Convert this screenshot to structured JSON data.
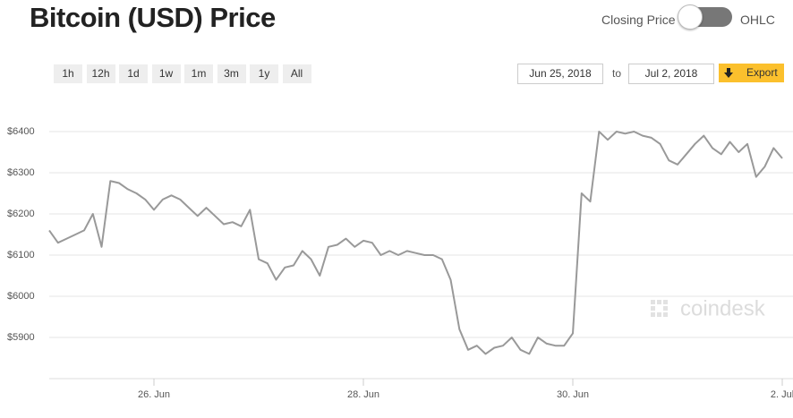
{
  "chart_data": {
    "type": "line",
    "title": "Bitcoin (USD) Price",
    "categories": [
      null,
      null,
      null,
      null,
      null,
      null,
      null,
      null,
      null,
      null,
      null,
      null,
      "26. Jun",
      null,
      null,
      null,
      null,
      null,
      null,
      null,
      null,
      null,
      null,
      null,
      null,
      null,
      null,
      null,
      null,
      null,
      null,
      null,
      null,
      null,
      null,
      null,
      "28. Jun",
      null,
      null,
      null,
      null,
      null,
      null,
      null,
      null,
      null,
      null,
      null,
      null,
      null,
      null,
      null,
      null,
      null,
      null,
      null,
      null,
      null,
      null,
      null,
      "30. Jun",
      null,
      null,
      null,
      null,
      null,
      null,
      null,
      null,
      null,
      null,
      null,
      null,
      null,
      null,
      null,
      null,
      null,
      null,
      null,
      null,
      null,
      null,
      null,
      "2. Jul"
    ],
    "series": [
      {
        "name": "Closing Price",
        "color": "#999999",
        "values": [
          6160,
          6130,
          6140,
          6150,
          6160,
          6200,
          6120,
          6280,
          6275,
          6260,
          6250,
          6235,
          6210,
          6235,
          6245,
          6235,
          6215,
          6195,
          6215,
          6195,
          6175,
          6180,
          6170,
          6210,
          6090,
          6080,
          6040,
          6070,
          6075,
          6110,
          6090,
          6050,
          6120,
          6125,
          6140,
          6120,
          6135,
          6130,
          6100,
          6110,
          6100,
          6110,
          6105,
          6100,
          6100,
          6090,
          6040,
          5920,
          5870,
          5880,
          5860,
          5875,
          5880,
          5900,
          5870,
          5860,
          5900,
          5885,
          5880,
          5880,
          5910,
          6250,
          6230,
          6400,
          6380,
          6400,
          6395,
          6400,
          6390,
          6385,
          6370,
          6330,
          6320,
          6345,
          6370,
          6390,
          6360,
          6345,
          6375,
          6350,
          6370,
          6290,
          6315,
          6360,
          6335
        ]
      }
    ],
    "ylim": [
      5800,
      6500
    ],
    "yticks": [
      {
        "value": 5900,
        "label": "$5900"
      },
      {
        "value": 6000,
        "label": "$6000"
      },
      {
        "value": 6100,
        "label": "$6100"
      },
      {
        "value": 6200,
        "label": "$6200"
      },
      {
        "value": 6300,
        "label": "$6300"
      },
      {
        "value": 6400,
        "label": "$6400"
      }
    ],
    "grid": true
  },
  "controls": {
    "toggle_left": "Closing Price",
    "toggle_right": "OHLC",
    "ranges": [
      "1h",
      "12h",
      "1d",
      "1w",
      "1m",
      "3m",
      "1y",
      "All"
    ],
    "date_from": "Jun 25, 2018",
    "date_sep": "to",
    "date_to": "Jul 2, 2018",
    "export": "Export",
    "watermark": "coindesk"
  }
}
